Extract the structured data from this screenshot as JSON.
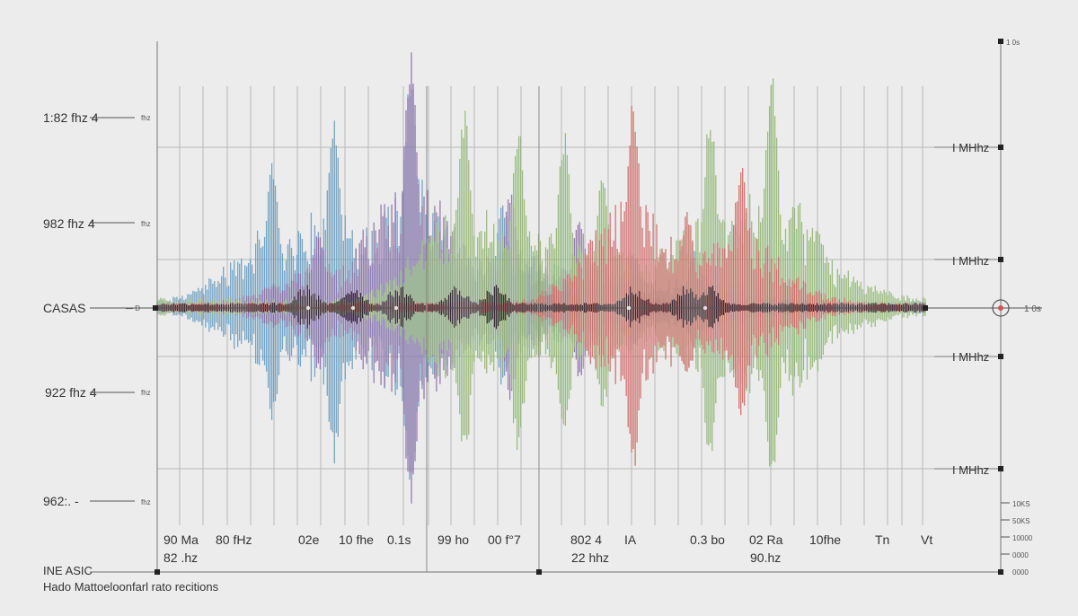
{
  "chart_data": {
    "type": "area",
    "title": "",
    "xlabel": "",
    "ylabel": "",
    "left_labels": [
      "1:82 fhz 4",
      "982 fhz 4",
      "CASAS",
      "922 fhz 4",
      "962:. -"
    ],
    "left_ticks_small": [
      "fhz",
      "fhz",
      "— D",
      "fhz",
      "fhz"
    ],
    "right_labels": [
      "I MHhz",
      "I MHhz",
      "I MHhz",
      "I MHhz"
    ],
    "right_top_small": "1 0s",
    "right_marker": "1 0s",
    "right_bottom_small": [
      "10KS",
      "50KS",
      "10000",
      "0000",
      "0000"
    ],
    "x_labels_row1": [
      "90 Ma",
      "80 fHz",
      "02e",
      "10 fhe",
      "0.1s",
      "99 ho",
      "00 f°7",
      "802 4",
      "IA",
      "0.3 bo",
      "02 Ra",
      "10fhe",
      "Tn",
      "Vt"
    ],
    "x_labels_row2": [
      "82 .hz",
      "22 hhz",
      "90.hz"
    ],
    "footer_title": "INE ASIC",
    "footer_caption": "Hado Mattoeloonfarl rato recitions",
    "colors": {
      "blue": "#6a9ec2",
      "purple": "#8f72a8",
      "green": "#93b878",
      "red": "#cf6a66",
      "core": "#3a2a36",
      "grid": "#b8b8b8",
      "axis": "#8a8a8a",
      "background": "#ececec"
    },
    "series": [
      {
        "color": "blue",
        "peaks": [
          [
            0.15,
            0.55
          ],
          [
            0.23,
            0.75
          ],
          [
            0.33,
            0.9
          ],
          [
            0.45,
            0.4
          ],
          [
            0.62,
            0.2
          ],
          [
            0.7,
            0.2
          ]
        ],
        "noise": 0.12
      },
      {
        "color": "purple",
        "peaks": [
          [
            0.21,
            0.3
          ],
          [
            0.33,
            1.0
          ],
          [
            0.46,
            0.45
          ],
          [
            0.55,
            0.35
          ]
        ],
        "noise": 0.08
      },
      {
        "color": "green",
        "peaks": [
          [
            0.4,
            0.75
          ],
          [
            0.47,
            0.7
          ],
          [
            0.53,
            0.65
          ],
          [
            0.58,
            0.5
          ],
          [
            0.72,
            0.75
          ],
          [
            0.8,
            0.9
          ],
          [
            0.86,
            0.3
          ]
        ],
        "noise": 0.16
      },
      {
        "color": "red",
        "peaks": [
          [
            0.62,
            0.8
          ],
          [
            0.69,
            0.35
          ],
          [
            0.76,
            0.55
          ]
        ],
        "noise": 0.1
      }
    ]
  }
}
